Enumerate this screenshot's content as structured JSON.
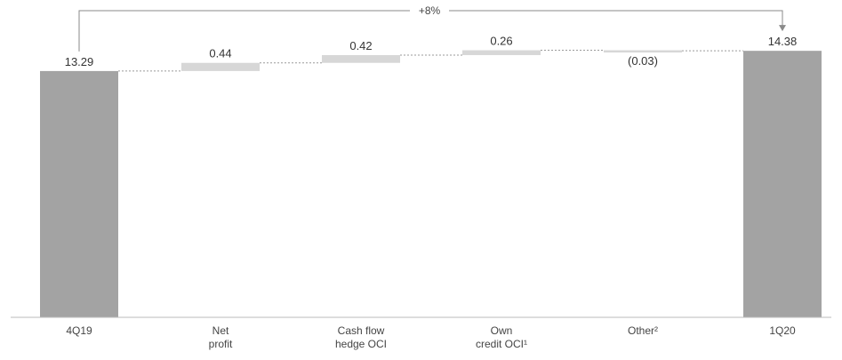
{
  "chart_data": {
    "type": "waterfall",
    "categories": [
      [
        "4Q19"
      ],
      [
        "Net",
        "profit"
      ],
      [
        "Cash flow",
        "hedge OCI"
      ],
      [
        "Own",
        "credit OCI¹"
      ],
      [
        "Other²"
      ],
      [
        "1Q20"
      ]
    ],
    "steps": [
      {
        "kind": "total",
        "value": 13.29,
        "label": "13.29"
      },
      {
        "kind": "delta",
        "value": 0.44,
        "label": "0.44"
      },
      {
        "kind": "delta",
        "value": 0.42,
        "label": "0.42"
      },
      {
        "kind": "delta",
        "value": 0.26,
        "label": "0.26"
      },
      {
        "kind": "delta",
        "value": -0.03,
        "label": "(0.03)"
      },
      {
        "kind": "total",
        "value": 14.38,
        "label": "14.38"
      }
    ],
    "bracket": {
      "from": 0,
      "to": 5,
      "label": "+8%"
    },
    "colors": {
      "total": "#a3a3a3",
      "delta": "#d7d7d7",
      "connector": "#9a9a9a",
      "axis": "#bbbbbb"
    }
  }
}
